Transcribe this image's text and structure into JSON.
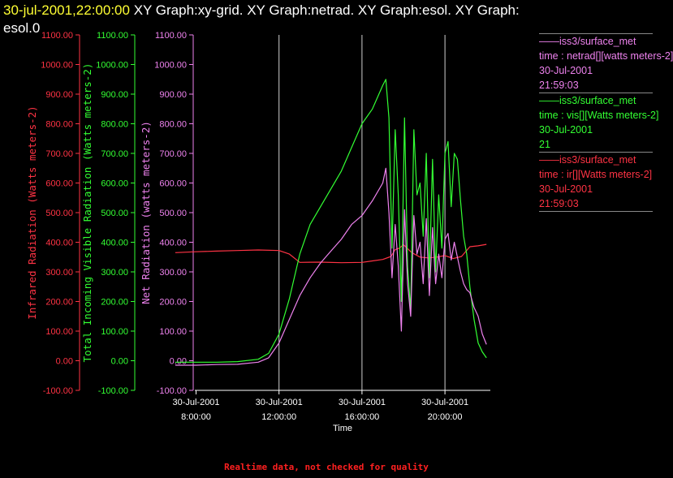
{
  "header": {
    "timestamp": "30-jul-2001,22:00:00",
    "graphs_line1": "XY Graph:xy-grid.  XY Graph:netrad.  XY Graph:esol.  XY Graph:",
    "graphs_line2": "esol.0"
  },
  "legend": [
    {
      "line1": "iss3/surface_met",
      "line2": "time : netrad[][watts meters-2]",
      "line3": "30-Jul-2001",
      "line4": "21:59:03",
      "color": "#ee82ee"
    },
    {
      "line1": "iss3/surface_met",
      "line2": "time : vis[][Watts meters-2]",
      "line3": "30-Jul-2001",
      "line4": "21",
      "color": "#33ff33"
    },
    {
      "line1": "iss3/surface_met",
      "line2": "time : ir[][Watts meters-2]",
      "line3": "30-Jul-2001",
      "line4": "21:59:03",
      "color": "#ff3344"
    }
  ],
  "footer": "Realtime data, not checked for quality",
  "chart_data": {
    "type": "line",
    "xlabel": "Time",
    "x_ticks": [
      {
        "date": "30-Jul-2001",
        "time": "8:00:00",
        "hour": 8
      },
      {
        "date": "30-Jul-2001",
        "time": "12:00:00",
        "hour": 12
      },
      {
        "date": "30-Jul-2001",
        "time": "16:00:00",
        "hour": 16
      },
      {
        "date": "30-Jul-2001",
        "time": "20:00:00",
        "hour": 20
      }
    ],
    "xlim": [
      7.0,
      22.0
    ],
    "x_gridlines_hours": [
      12,
      16,
      20
    ],
    "ylim": [
      -100,
      1100
    ],
    "y_tick_labels": [
      "-100.00",
      "0.00",
      "100.00",
      "200.00",
      "300.00",
      "400.00",
      "500.00",
      "600.00",
      "700.00",
      "800.00",
      "900.00",
      "1000.00",
      "1100.00"
    ],
    "y_tick_values": [
      -100,
      0,
      100,
      200,
      300,
      400,
      500,
      600,
      700,
      800,
      900,
      1000,
      1100
    ],
    "axes": [
      {
        "label": "Infrared Radiation (Watts meters-2)",
        "color": "#ff3344"
      },
      {
        "label": "Total Incoming Visible Radiation (Watts meters-2)",
        "color": "#33ff33"
      },
      {
        "label": "Net Radiation (watts meters-2)",
        "color": "#ee82ee"
      }
    ],
    "series": [
      {
        "name": "ir",
        "color": "#ff3344",
        "x": [
          7.0,
          8.0,
          9.0,
          10.0,
          11.0,
          12.0,
          12.5,
          13.0,
          14.0,
          15.0,
          16.0,
          16.5,
          17.0,
          17.4,
          17.6,
          17.8,
          18.0,
          18.4,
          18.8,
          19.2,
          19.6,
          20.0,
          20.4,
          20.8,
          21.2,
          21.6,
          22.0
        ],
        "y": [
          365,
          368,
          370,
          372,
          374,
          372,
          360,
          332,
          333,
          331,
          332,
          337,
          342,
          352,
          375,
          380,
          392,
          365,
          350,
          347,
          350,
          355,
          345,
          352,
          385,
          388,
          393
        ]
      },
      {
        "name": "vis",
        "color": "#33ff33",
        "x": [
          7.0,
          8.0,
          9.0,
          10.0,
          11.0,
          11.5,
          12.0,
          12.5,
          13.0,
          13.5,
          14.0,
          14.5,
          15.0,
          15.5,
          16.0,
          16.5,
          17.0,
          17.15,
          17.3,
          17.45,
          17.6,
          17.75,
          17.9,
          18.05,
          18.2,
          18.35,
          18.5,
          18.65,
          18.8,
          18.95,
          19.1,
          19.25,
          19.4,
          19.55,
          19.7,
          19.85,
          20.0,
          20.15,
          20.3,
          20.45,
          20.6,
          20.75,
          20.9,
          21.05,
          21.2,
          21.4,
          21.6,
          21.8,
          22.0
        ],
        "y": [
          -5,
          -5,
          -5,
          -3,
          5,
          25,
          90,
          210,
          360,
          460,
          520,
          580,
          640,
          720,
          800,
          850,
          930,
          950,
          820,
          380,
          780,
          560,
          200,
          820,
          320,
          170,
          780,
          560,
          600,
          420,
          700,
          280,
          680,
          300,
          560,
          380,
          700,
          740,
          520,
          700,
          680,
          540,
          420,
          360,
          250,
          140,
          60,
          30,
          10
        ]
      },
      {
        "name": "netrad",
        "color": "#ee82ee",
        "x": [
          7.0,
          8.0,
          9.0,
          10.0,
          11.0,
          11.5,
          12.0,
          12.5,
          13.0,
          13.5,
          14.0,
          14.5,
          15.0,
          15.5,
          16.0,
          16.5,
          17.0,
          17.15,
          17.3,
          17.45,
          17.6,
          17.75,
          17.9,
          18.05,
          18.2,
          18.35,
          18.5,
          18.65,
          18.8,
          18.95,
          19.1,
          19.25,
          19.4,
          19.55,
          19.7,
          19.85,
          20.0,
          20.15,
          20.3,
          20.45,
          20.6,
          20.75,
          20.9,
          21.05,
          21.2,
          21.4,
          21.6,
          21.8,
          22.0
        ],
        "y": [
          -15,
          -15,
          -13,
          -12,
          -5,
          10,
          60,
          140,
          220,
          280,
          330,
          370,
          410,
          460,
          490,
          540,
          600,
          650,
          500,
          280,
          460,
          320,
          100,
          510,
          260,
          150,
          490,
          360,
          400,
          260,
          480,
          220,
          450,
          260,
          360,
          280,
          410,
          430,
          340,
          400,
          350,
          300,
          260,
          240,
          230,
          180,
          150,
          90,
          55
        ]
      }
    ]
  }
}
